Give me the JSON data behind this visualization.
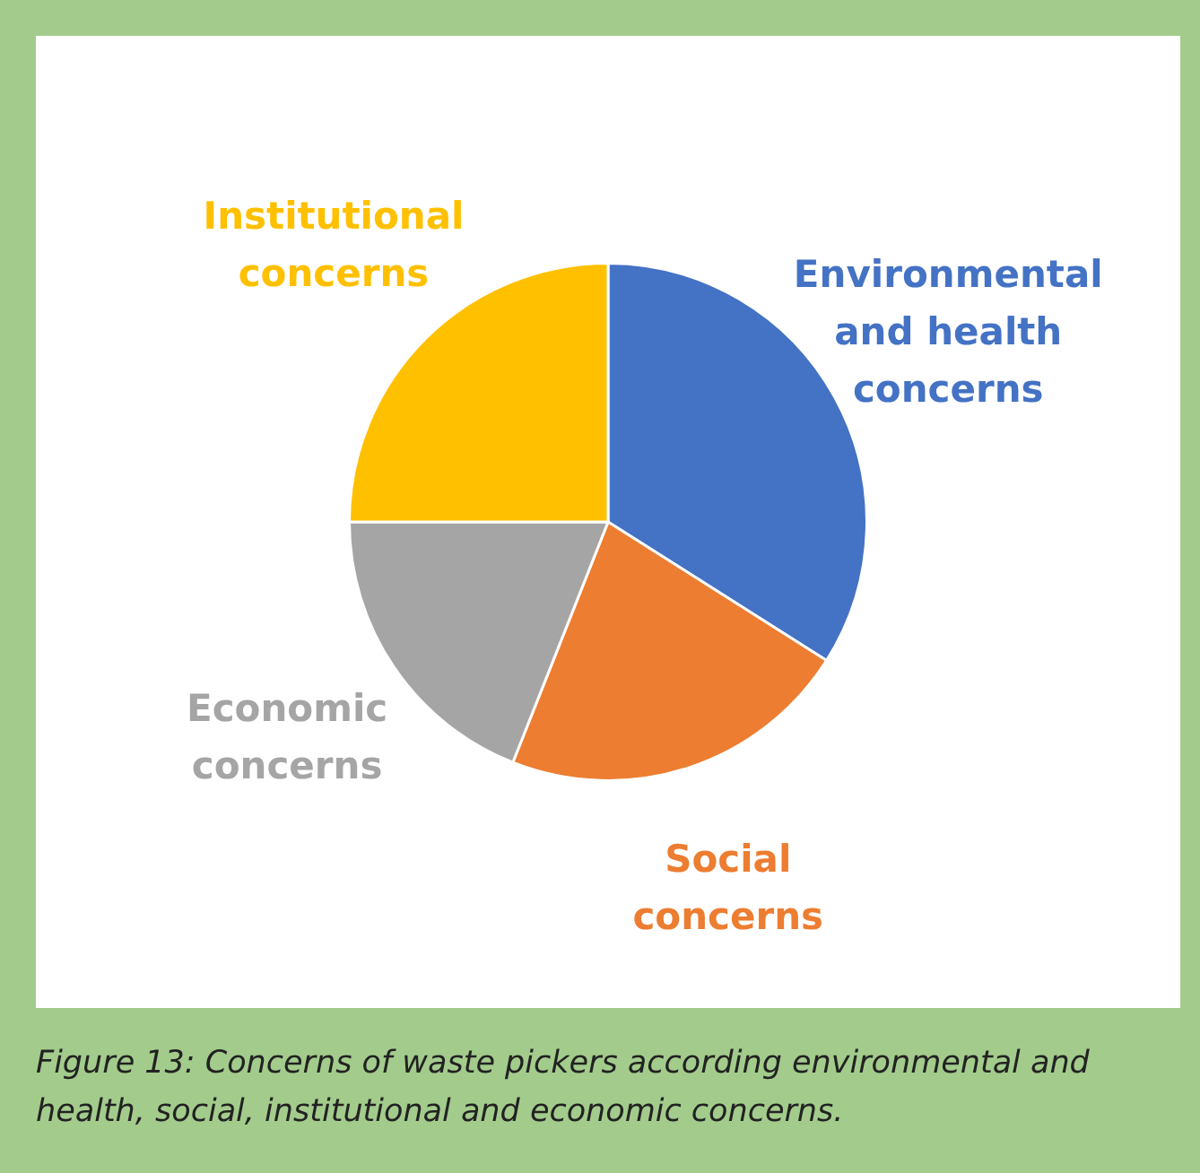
{
  "chart_data": {
    "type": "pie",
    "categories": [
      "Environmental and health concerns",
      "Social concerns",
      "Economic concerns",
      "Institutional concerns"
    ],
    "values": [
      34,
      22,
      19,
      25
    ],
    "colors": [
      "#4472c4",
      "#ed7d31",
      "#a5a5a5",
      "#ffc000"
    ],
    "legend": false,
    "annotations": [
      "Figure 13: Concerns of waste pickers according environmental and health, social, institutional and economic concerns."
    ]
  }
}
